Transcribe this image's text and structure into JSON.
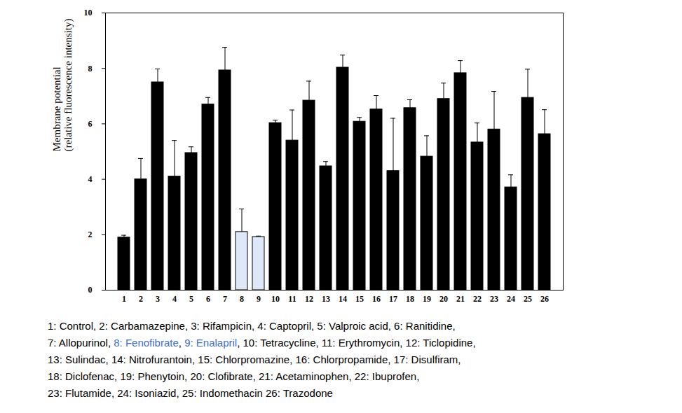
{
  "chart_data": {
    "type": "bar",
    "ylabel": [
      "Membrane potential",
      "(relative fluorescence intensity)"
    ],
    "categories": [
      "1",
      "2",
      "3",
      "4",
      "5",
      "6",
      "7",
      "8",
      "9",
      "10",
      "11",
      "12",
      "13",
      "14",
      "15",
      "16",
      "17",
      "18",
      "19",
      "20",
      "21",
      "22",
      "23",
      "24",
      "25",
      "26"
    ],
    "values": [
      1.9,
      4.0,
      7.5,
      4.1,
      4.95,
      6.7,
      7.93,
      2.1,
      1.92,
      6.03,
      5.4,
      6.84,
      4.47,
      8.03,
      6.08,
      6.52,
      4.3,
      6.57,
      4.82,
      6.9,
      7.83,
      5.33,
      5.8,
      3.71,
      6.94,
      5.63
    ],
    "errors": [
      0.08,
      0.75,
      0.48,
      1.3,
      0.22,
      0.25,
      0.83,
      0.83,
      0.03,
      0.1,
      1.1,
      0.7,
      0.17,
      0.45,
      0.15,
      0.5,
      1.9,
      0.3,
      0.75,
      0.57,
      0.45,
      0.7,
      1.37,
      0.45,
      1.03,
      0.88
    ],
    "colors": [
      "#000000",
      "#000000",
      "#000000",
      "#000000",
      "#000000",
      "#000000",
      "#000000",
      "#dfe8f8",
      "#dfe8f8",
      "#000000",
      "#000000",
      "#000000",
      "#000000",
      "#000000",
      "#000000",
      "#000000",
      "#000000",
      "#000000",
      "#000000",
      "#000000",
      "#000000",
      "#000000",
      "#000000",
      "#000000",
      "#000000",
      "#000000"
    ],
    "ylim": [
      0,
      10
    ],
    "yticks": [
      0,
      2,
      4,
      6,
      8,
      10
    ],
    "caption": [
      [
        {
          "text": "1: Control, 2: Carbamazepine, 3: Rifampicin, 4: Captopril, 5: Valproic acid, 6: Ranitidine,"
        }
      ],
      [
        {
          "text": "7: Allopurinol, "
        },
        {
          "text": "8: Fenofibrate",
          "color": "#3c6fd6"
        },
        {
          "text": ", "
        },
        {
          "text": "9: Enalapril",
          "color": "#3c6fd6"
        },
        {
          "text": ", 10: Tetracycline, 11: Erythromycin, 12: Ticlopidine,"
        }
      ],
      [
        {
          "text": "13: Sulindac, 14: Nitrofurantoin, 15: Chlorpromazine, 16: Chlorpropamide, 17: Disulfiram,"
        }
      ],
      [
        {
          "text": "18: Diclofenac, 19: Phenytoin, 20: Clofibrate, 21: Acetaminophen, 22: Ibuprofen,"
        }
      ],
      [
        {
          "text": "23: Flutamide, 24: Isoniazid, 25: Indomethacin 26: Trazodone"
        }
      ]
    ]
  }
}
